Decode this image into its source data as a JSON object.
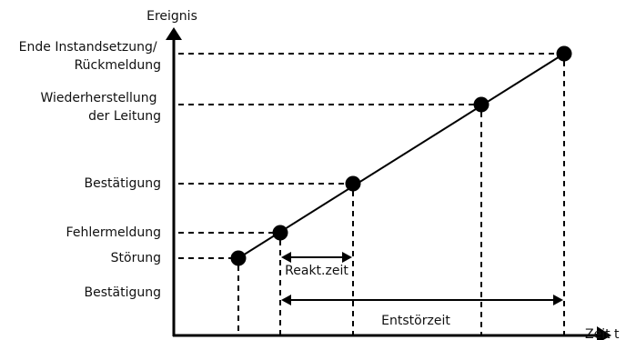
{
  "axes": {
    "y_label": "Ereignis",
    "x_label": "Zeit t"
  },
  "events": [
    {
      "id": "stoerung",
      "label": "Störung"
    },
    {
      "id": "fehlermeldung",
      "label": "Fehlermeldung"
    },
    {
      "id": "bestaetigung",
      "label": "Bestätigung"
    },
    {
      "id": "wiederherstellung",
      "lines": [
        "Wiederherstellung",
        "der Leitung"
      ]
    },
    {
      "id": "ende",
      "lines": [
        "Ende Instandsetzung/",
        "Rückmeldung"
      ]
    }
  ],
  "extra_label": "Bestätigung",
  "intervals": {
    "reaktionszeit": "Reakt.zeit",
    "entstoerzeit": "Entstörzeit"
  },
  "colors": {
    "ink": "#000000",
    "text": "#111111",
    "background": "#ffffff"
  }
}
